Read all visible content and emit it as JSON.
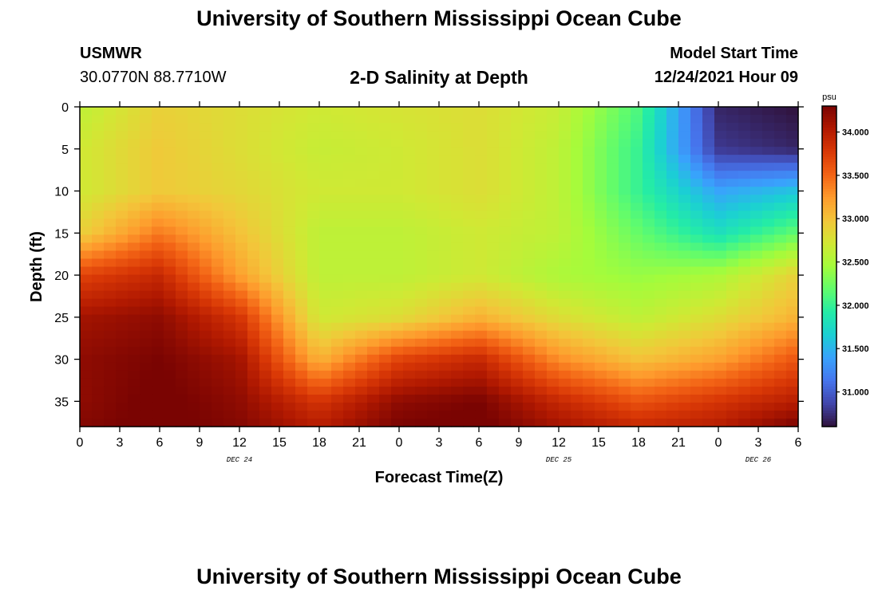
{
  "page": {
    "top_title": "University of Southern Mississippi Ocean Cube",
    "bottom_title": "University of Southern Mississippi Ocean Cube",
    "station": "USMWR",
    "coords": "30.0770N  88.7710W",
    "plot_title": "2-D Salinity at Depth",
    "model_start_label": "Model Start Time",
    "model_start_value": "12/24/2021 Hour 09"
  },
  "chart_data": {
    "type": "heatmap",
    "title": "2-D Salinity at Depth",
    "xlabel": "Forecast Time(Z)",
    "ylabel": "Depth (ft)",
    "x_hours": [
      0,
      6,
      12,
      18,
      24,
      30,
      36,
      42,
      48,
      54
    ],
    "x_tick_labels": [
      "0",
      "3",
      "6",
      "9",
      "12",
      "15",
      "18",
      "21",
      "0",
      "3",
      "6",
      "9",
      "12",
      "15",
      "18",
      "21",
      "0",
      "3",
      "6"
    ],
    "x_tick_hours": [
      0,
      3,
      6,
      9,
      12,
      15,
      18,
      21,
      24,
      27,
      30,
      33,
      36,
      39,
      42,
      45,
      48,
      51,
      54
    ],
    "date_labels": [
      {
        "text": "DEC 24",
        "hour": 12
      },
      {
        "text": "DEC 25",
        "hour": 36
      },
      {
        "text": "DEC 26",
        "hour": 51
      }
    ],
    "depth": [
      0,
      5,
      10,
      15,
      20,
      25,
      30,
      35,
      38
    ],
    "y_tick_labels": [
      "0",
      "5",
      "10",
      "15",
      "20",
      "25",
      "30",
      "35"
    ],
    "y_ticks": [
      0,
      5,
      10,
      15,
      20,
      25,
      30,
      35
    ],
    "xlim": [
      0,
      54
    ],
    "ylim": [
      0,
      38
    ],
    "salinity": [
      [
        32.6,
        32.9,
        32.8,
        32.7,
        32.75,
        32.8,
        32.65,
        32.1,
        30.7,
        30.6
      ],
      [
        32.7,
        32.95,
        32.8,
        32.65,
        32.7,
        32.8,
        32.6,
        32.0,
        30.8,
        30.7
      ],
      [
        32.7,
        32.95,
        32.85,
        32.7,
        32.7,
        32.8,
        32.6,
        32.0,
        31.4,
        31.6
      ],
      [
        32.9,
        33.4,
        33.0,
        32.6,
        32.6,
        32.7,
        32.6,
        32.2,
        31.8,
        32.2
      ],
      [
        33.7,
        33.9,
        33.2,
        32.6,
        32.6,
        32.7,
        32.5,
        32.4,
        32.5,
        32.9
      ],
      [
        34.1,
        34.2,
        33.8,
        32.7,
        32.8,
        33.1,
        32.8,
        32.6,
        32.8,
        33.1
      ],
      [
        34.2,
        34.3,
        34.1,
        33.1,
        33.7,
        33.9,
        33.3,
        33.0,
        33.2,
        33.6
      ],
      [
        34.2,
        34.35,
        34.2,
        33.8,
        34.2,
        34.3,
        33.9,
        33.6,
        33.8,
        34.0
      ],
      [
        34.25,
        34.35,
        34.25,
        34.0,
        34.3,
        34.35,
        34.1,
        33.9,
        34.0,
        34.3
      ]
    ],
    "colorbar": {
      "unit": "psu",
      "min": 30.6,
      "max": 34.3,
      "ticks": [
        31.0,
        31.5,
        32.0,
        32.5,
        33.0,
        33.5,
        34.0
      ],
      "tick_labels": [
        "31.000",
        "31.500",
        "32.000",
        "32.500",
        "33.000",
        "33.500",
        "34.000"
      ]
    },
    "colormap": [
      "#30123b",
      "#4145ab",
      "#4675ed",
      "#39a2fc",
      "#1bcfd4",
      "#24eca6",
      "#61fc6c",
      "#a4fc3b",
      "#d1e834",
      "#f3c63a",
      "#fe9b2d",
      "#f36315",
      "#d93806",
      "#b11901",
      "#7a0402"
    ],
    "grid": false
  }
}
